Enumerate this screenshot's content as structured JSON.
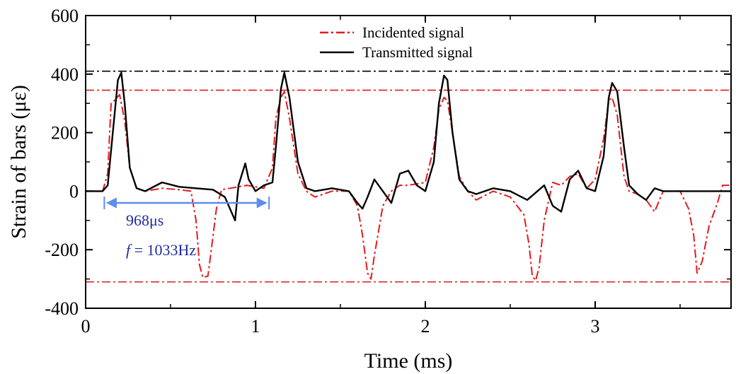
{
  "chart_data": {
    "type": "line",
    "xlabel": "Time (ms)",
    "ylabel": "Strain of bars (με)",
    "xlim": [
      0,
      3.8
    ],
    "ylim": [
      -400,
      600
    ],
    "xticks": [
      "0",
      "1",
      "2",
      "3"
    ],
    "xtick_values": [
      0,
      1,
      2,
      3
    ],
    "yticks": [
      "-400",
      "-200",
      "0",
      "200",
      "400",
      "600"
    ],
    "ytick_values": [
      -400,
      -200,
      0,
      200,
      400,
      600
    ],
    "grid": false,
    "legend_position": "top-center",
    "series": [
      {
        "name": "Incidented signal",
        "color": "#e41a1c",
        "dash": "dash-dot",
        "x": [
          0,
          0.1,
          0.13,
          0.15,
          0.17,
          0.2,
          0.23,
          0.26,
          0.3,
          0.35,
          0.45,
          0.55,
          0.62,
          0.65,
          0.67,
          0.69,
          0.72,
          0.74,
          0.77,
          0.8,
          0.85,
          0.9,
          0.95,
          1.0,
          1.05,
          1.1,
          1.12,
          1.15,
          1.17,
          1.2,
          1.25,
          1.3,
          1.35,
          1.45,
          1.55,
          1.6,
          1.63,
          1.66,
          1.68,
          1.7,
          1.75,
          1.8,
          1.85,
          1.9,
          2.0,
          2.05,
          2.08,
          2.11,
          2.13,
          2.16,
          2.2,
          2.25,
          2.3,
          2.4,
          2.5,
          2.58,
          2.61,
          2.63,
          2.65,
          2.67,
          2.7,
          2.75,
          2.8,
          2.85,
          2.9,
          2.95,
          3.0,
          3.05,
          3.08,
          3.1,
          3.13,
          3.17,
          3.2,
          3.25,
          3.3,
          3.35,
          3.4,
          3.5,
          3.55,
          3.58,
          3.6,
          3.63,
          3.67,
          3.72,
          3.75,
          3.8
        ],
        "y": [
          0,
          0,
          60,
          300,
          310,
          330,
          240,
          80,
          10,
          0,
          10,
          5,
          0,
          -100,
          -250,
          -295,
          -290,
          -200,
          -60,
          5,
          10,
          15,
          20,
          15,
          10,
          80,
          250,
          320,
          340,
          250,
          60,
          0,
          -20,
          0,
          0,
          -50,
          -150,
          -280,
          -300,
          -220,
          -50,
          0,
          20,
          20,
          30,
          150,
          280,
          320,
          310,
          200,
          50,
          0,
          -30,
          0,
          -20,
          -80,
          -180,
          -290,
          -305,
          -260,
          -100,
          30,
          20,
          50,
          60,
          10,
          40,
          180,
          310,
          320,
          260,
          50,
          0,
          -10,
          -30,
          -70,
          0,
          0,
          -60,
          -150,
          -280,
          -240,
          -120,
          -40,
          20,
          20
        ]
      },
      {
        "name": "Transmitted signal",
        "color": "#000000",
        "dash": "solid",
        "x": [
          0,
          0.1,
          0.13,
          0.16,
          0.19,
          0.21,
          0.23,
          0.26,
          0.3,
          0.35,
          0.45,
          0.55,
          0.65,
          0.75,
          0.82,
          0.88,
          0.9,
          0.94,
          0.96,
          1.0,
          1.05,
          1.1,
          1.12,
          1.15,
          1.17,
          1.2,
          1.25,
          1.3,
          1.35,
          1.45,
          1.55,
          1.6,
          1.63,
          1.66,
          1.7,
          1.75,
          1.8,
          1.85,
          1.9,
          1.95,
          2.0,
          2.05,
          2.08,
          2.11,
          2.13,
          2.16,
          2.2,
          2.25,
          2.3,
          2.4,
          2.5,
          2.6,
          2.7,
          2.75,
          2.8,
          2.85,
          2.9,
          2.95,
          3.0,
          3.05,
          3.08,
          3.1,
          3.13,
          3.17,
          3.2,
          3.25,
          3.3,
          3.35,
          3.4,
          3.45,
          3.8
        ],
        "y": [
          0,
          0,
          20,
          200,
          380,
          405,
          300,
          80,
          10,
          0,
          30,
          15,
          10,
          5,
          -20,
          -100,
          20,
          95,
          40,
          0,
          20,
          30,
          150,
          350,
          405,
          320,
          100,
          10,
          0,
          10,
          0,
          -40,
          -60,
          -20,
          40,
          0,
          -40,
          60,
          70,
          20,
          0,
          100,
          300,
          395,
          380,
          200,
          40,
          0,
          -10,
          10,
          0,
          -30,
          20,
          -50,
          -70,
          40,
          70,
          10,
          0,
          120,
          320,
          370,
          340,
          150,
          20,
          -10,
          -30,
          10,
          0,
          0,
          0
        ]
      }
    ],
    "reference_lines": [
      {
        "axis": "y",
        "value": 410,
        "color": "#000000",
        "dash": "dash-dot"
      },
      {
        "axis": "y",
        "value": 345,
        "color": "#e41a1c",
        "dash": "dash-dot"
      },
      {
        "axis": "y",
        "value": -310,
        "color": "#e41a1c",
        "dash": "dash-dot"
      }
    ],
    "annotations": {
      "period_arrow": {
        "x_start": 0.11,
        "x_end": 1.08,
        "y": -40,
        "color": "#5b8def"
      },
      "period_label": "968μs",
      "frequency_symbol": "f",
      "frequency_value": " = 1033Hz",
      "text_color": "#1f2a9e"
    }
  }
}
